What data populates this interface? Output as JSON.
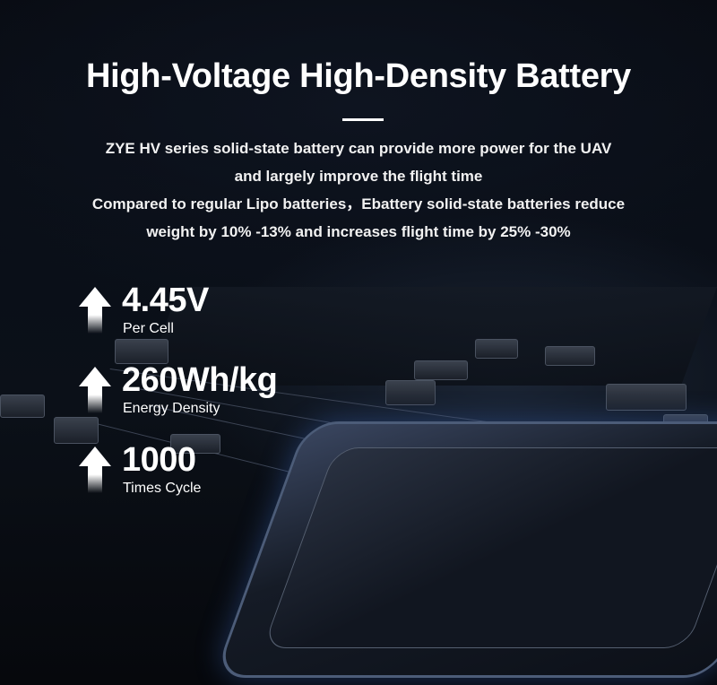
{
  "header": {
    "title": "High-Voltage High-Density Battery",
    "description": [
      "ZYE HV series solid-state battery can provide more power for the UAV",
      "and largely improve the flight time",
      "Compared to regular Lipo batteries，Ebattery solid-state batteries reduce",
      "weight by 10% -13% and increases flight time by 25% -30%"
    ]
  },
  "stats": [
    {
      "value": "4.45V",
      "label": "Per Cell",
      "icon": "arrow-up-icon"
    },
    {
      "value": "260Wh/kg",
      "label": "Energy Density",
      "icon": "arrow-up-icon"
    },
    {
      "value": "1000",
      "label": "Times Cycle",
      "icon": "arrow-up-icon"
    }
  ]
}
